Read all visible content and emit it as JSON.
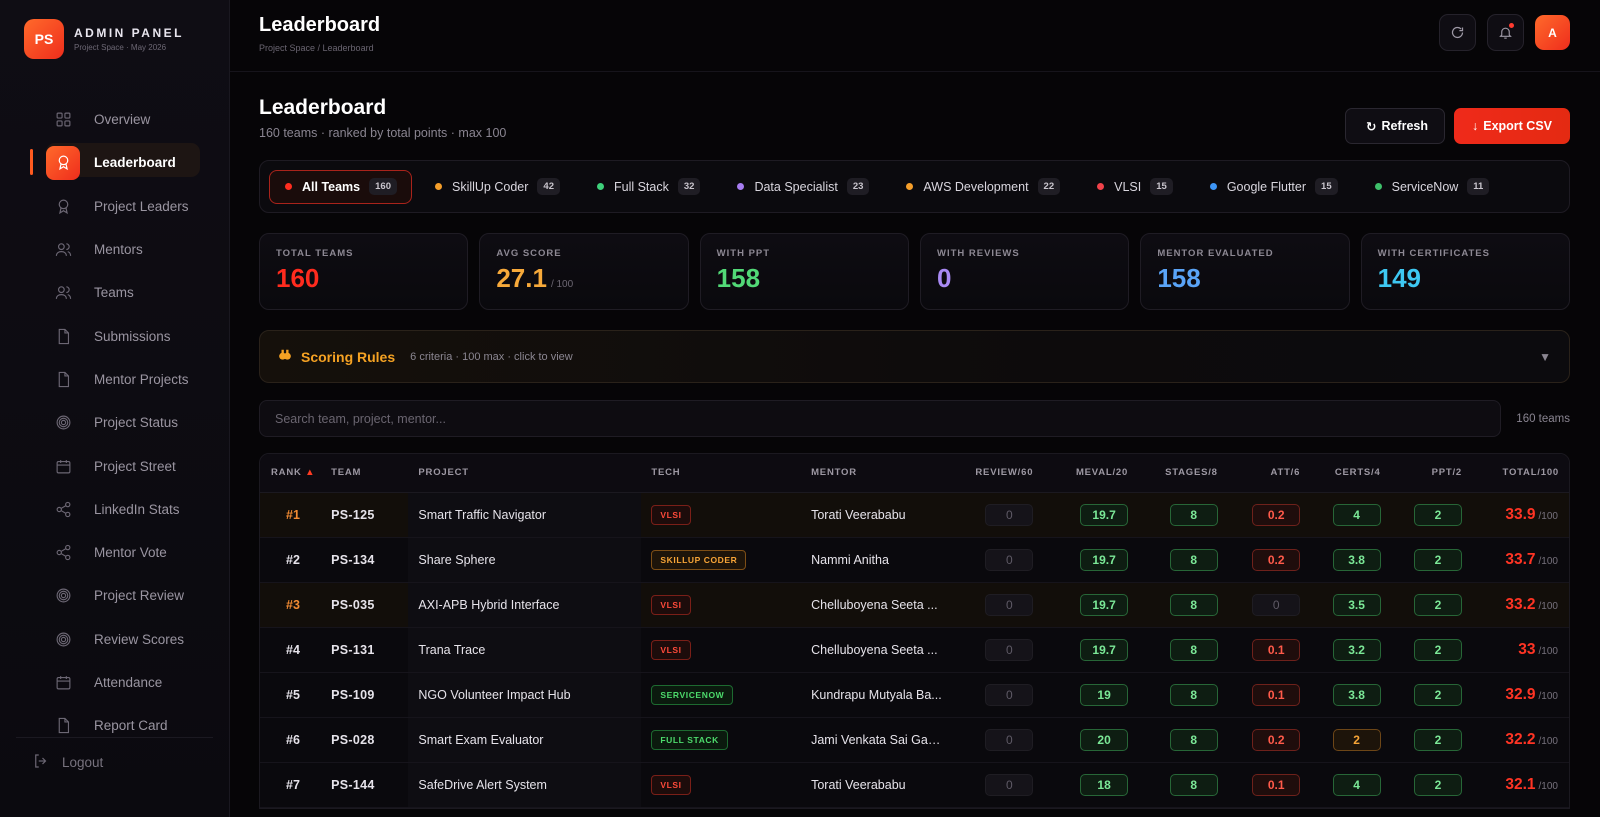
{
  "brand": {
    "logo": "PS",
    "title": "ADMIN PANEL",
    "subtitle": "Project Space · May 2026"
  },
  "sidebar": {
    "items": [
      {
        "label": "Overview",
        "icon": "grid-icon",
        "active": false
      },
      {
        "label": "Leaderboard",
        "icon": "award-icon",
        "active": true
      },
      {
        "label": "Project Leaders",
        "icon": "award-icon",
        "active": false
      },
      {
        "label": "Mentors",
        "icon": "users-icon",
        "active": false
      },
      {
        "label": "Teams",
        "icon": "users-icon",
        "active": false
      },
      {
        "label": "Submissions",
        "icon": "file-icon",
        "active": false
      },
      {
        "label": "Mentor Projects",
        "icon": "file-icon",
        "active": false
      },
      {
        "label": "Project Status",
        "icon": "target-icon",
        "active": false
      },
      {
        "label": "Project Street",
        "icon": "calendar-icon",
        "active": false
      },
      {
        "label": "LinkedIn Stats",
        "icon": "share-icon",
        "active": false
      },
      {
        "label": "Mentor Vote",
        "icon": "share-icon",
        "active": false
      },
      {
        "label": "Project Review",
        "icon": "target-icon",
        "active": false
      },
      {
        "label": "Review Scores",
        "icon": "target-icon",
        "active": false
      },
      {
        "label": "Attendance",
        "icon": "calendar-icon",
        "active": false
      },
      {
        "label": "Report Card",
        "icon": "file-icon",
        "active": false
      }
    ],
    "logout_label": "Logout"
  },
  "topbar": {
    "title": "Leaderboard",
    "breadcrumb": "Project Space / Leaderboard",
    "avatar": "A"
  },
  "page": {
    "title": "Leaderboard",
    "subtitle": "160 teams · ranked by total points · max 100",
    "refresh_label": "Refresh",
    "export_label": "Export CSV"
  },
  "filters": [
    {
      "label": "All Teams",
      "count": "160",
      "color": "#ff2d1f",
      "active": true
    },
    {
      "label": "SkillUp Coder",
      "count": "42",
      "color": "#f59e2a",
      "active": false
    },
    {
      "label": "Full Stack",
      "count": "32",
      "color": "#3ed07a",
      "active": false
    },
    {
      "label": "Data Specialist",
      "count": "23",
      "color": "#a67cf0",
      "active": false
    },
    {
      "label": "AWS Development",
      "count": "22",
      "color": "#f59e2a",
      "active": false
    },
    {
      "label": "VLSI",
      "count": "15",
      "color": "#f0424a",
      "active": false
    },
    {
      "label": "Google Flutter",
      "count": "15",
      "color": "#3d95f5",
      "active": false
    },
    {
      "label": "ServiceNow",
      "count": "11",
      "color": "#3ec06a",
      "active": false
    }
  ],
  "stats": [
    {
      "title": "TOTAL TEAMS",
      "value": "160",
      "suffix": "",
      "color": "#ff2b1e"
    },
    {
      "title": "AVG SCORE",
      "value": "27.1",
      "suffix": "/ 100",
      "color": "#f7a93a"
    },
    {
      "title": "WITH PPT",
      "value": "158",
      "suffix": "",
      "color": "#52d977"
    },
    {
      "title": "WITH REVIEWS",
      "value": "0",
      "suffix": "",
      "color": "#a889f3"
    },
    {
      "title": "MENTOR EVALUATED",
      "value": "158",
      "suffix": "",
      "color": "#5aa4f7"
    },
    {
      "title": "WITH CERTIFICATES",
      "value": "149",
      "suffix": "",
      "color": "#3ec8f2"
    }
  ],
  "rules": {
    "title": "Scoring Rules",
    "desc": "6 criteria · 100 max · click to view"
  },
  "search": {
    "placeholder": "Search team, project, mentor...",
    "count": "160 teams"
  },
  "table": {
    "headers": {
      "rank": "RANK",
      "team": "TEAM",
      "project": "PROJECT",
      "tech": "TECH",
      "mentor": "MENTOR",
      "review": "REVIEW/60",
      "meval": "MEVAL/20",
      "stages": "STAGES/8",
      "att": "ATT/6",
      "certs": "CERTS/4",
      "ppt": "PPT/2",
      "total": "TOTAL/100"
    },
    "rows": [
      {
        "rank": "#1",
        "team": "PS-125",
        "project": "Smart Traffic Navigator",
        "tech": "VLSI",
        "tech_kind": "vlsi",
        "mentor": "Torati Veerababu",
        "review": "0",
        "meval": "19.7",
        "stages": "8",
        "att": "0.2",
        "att_kind": "red",
        "certs": "4",
        "certs_kind": "green",
        "ppt": "2",
        "total": "33.9",
        "total_suffix": "/100",
        "top": true
      },
      {
        "rank": "#2",
        "team": "PS-134",
        "project": "Share Sphere",
        "tech": "SKILLUP CODER",
        "tech_kind": "skill",
        "mentor": "Nammi Anitha",
        "review": "0",
        "meval": "19.7",
        "stages": "8",
        "att": "0.2",
        "att_kind": "red",
        "certs": "3.8",
        "certs_kind": "green",
        "ppt": "2",
        "total": "33.7",
        "total_suffix": "/100",
        "top": false
      },
      {
        "rank": "#3",
        "team": "PS-035",
        "project": "AXI-APB Hybrid Interface",
        "tech": "VLSI",
        "tech_kind": "vlsi",
        "mentor": "Chelluboyena Seeta ...",
        "review": "0",
        "meval": "19.7",
        "stages": "8",
        "att": "0",
        "att_kind": "zero",
        "certs": "3.5",
        "certs_kind": "green",
        "ppt": "2",
        "total": "33.2",
        "total_suffix": "/100",
        "top": true
      },
      {
        "rank": "#4",
        "team": "PS-131",
        "project": "Trana Trace",
        "tech": "VLSI",
        "tech_kind": "vlsi",
        "mentor": "Chelluboyena Seeta ...",
        "review": "0",
        "meval": "19.7",
        "stages": "8",
        "att": "0.1",
        "att_kind": "red",
        "certs": "3.2",
        "certs_kind": "green",
        "ppt": "2",
        "total": "33",
        "total_suffix": "/100",
        "top": false
      },
      {
        "rank": "#5",
        "team": "PS-109",
        "project": "NGO Volunteer Impact Hub",
        "tech": "SERVICENOW",
        "tech_kind": "svc",
        "mentor": "Kundrapu Mutyala Ba...",
        "review": "0",
        "meval": "19",
        "stages": "8",
        "att": "0.1",
        "att_kind": "red",
        "certs": "3.8",
        "certs_kind": "green",
        "ppt": "2",
        "total": "32.9",
        "total_suffix": "/100",
        "top": false
      },
      {
        "rank": "#6",
        "team": "PS-028",
        "project": "Smart Exam Evaluator",
        "tech": "FULL STACK",
        "tech_kind": "fs",
        "mentor": "Jami Venkata Sai Gan...",
        "review": "0",
        "meval": "20",
        "stages": "8",
        "att": "0.2",
        "att_kind": "red",
        "certs": "2",
        "certs_kind": "orange",
        "ppt": "2",
        "total": "32.2",
        "total_suffix": "/100",
        "top": false
      },
      {
        "rank": "#7",
        "team": "PS-144",
        "project": "SafeDrive Alert System",
        "tech": "VLSI",
        "tech_kind": "vlsi",
        "mentor": "Torati Veerababu",
        "review": "0",
        "meval": "18",
        "stages": "8",
        "att": "0.1",
        "att_kind": "red",
        "certs": "4",
        "certs_kind": "green",
        "ppt": "2",
        "total": "32.1",
        "total_suffix": "/100",
        "top": false
      }
    ]
  },
  "accent": "#ff3b22"
}
